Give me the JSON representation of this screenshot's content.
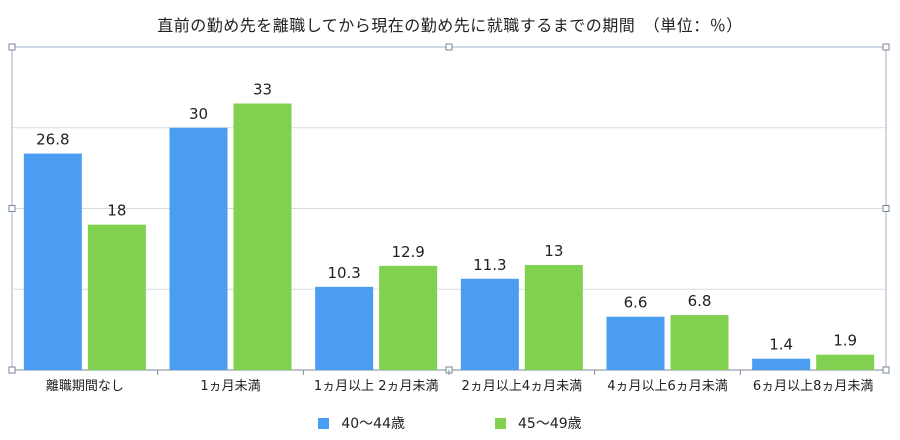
{
  "chart_data": {
    "type": "bar",
    "title": "直前の勤め先を離職してから現在の勤め先に就職するまでの期間　（単位：％）",
    "categories": [
      "離職期間なし",
      "1ヵ月未満",
      "1ヵ月以上 2ヵ月未満",
      "2ヵ月以上4ヵ月未満",
      "4ヵ月以上6ヵ月未満",
      "6ヵ月以上8ヵ月未満"
    ],
    "series": [
      {
        "name": "40〜44歳",
        "values": [
          26.8,
          30,
          10.3,
          11.3,
          6.6,
          1.4
        ],
        "labels": [
          "26.8",
          "30",
          "10.3",
          "11.3",
          "6.6",
          "1.4"
        ],
        "color": "#4a9df0"
      },
      {
        "name": "45〜49歳",
        "values": [
          18,
          33,
          12.9,
          13,
          6.8,
          1.9
        ],
        "labels": [
          "18",
          "33",
          "12.9",
          "13",
          "6.8",
          "1.9"
        ],
        "color": "#7fd14f"
      }
    ],
    "ylim": [
      0,
      40
    ],
    "grid": true,
    "legend_position": "bottom"
  }
}
